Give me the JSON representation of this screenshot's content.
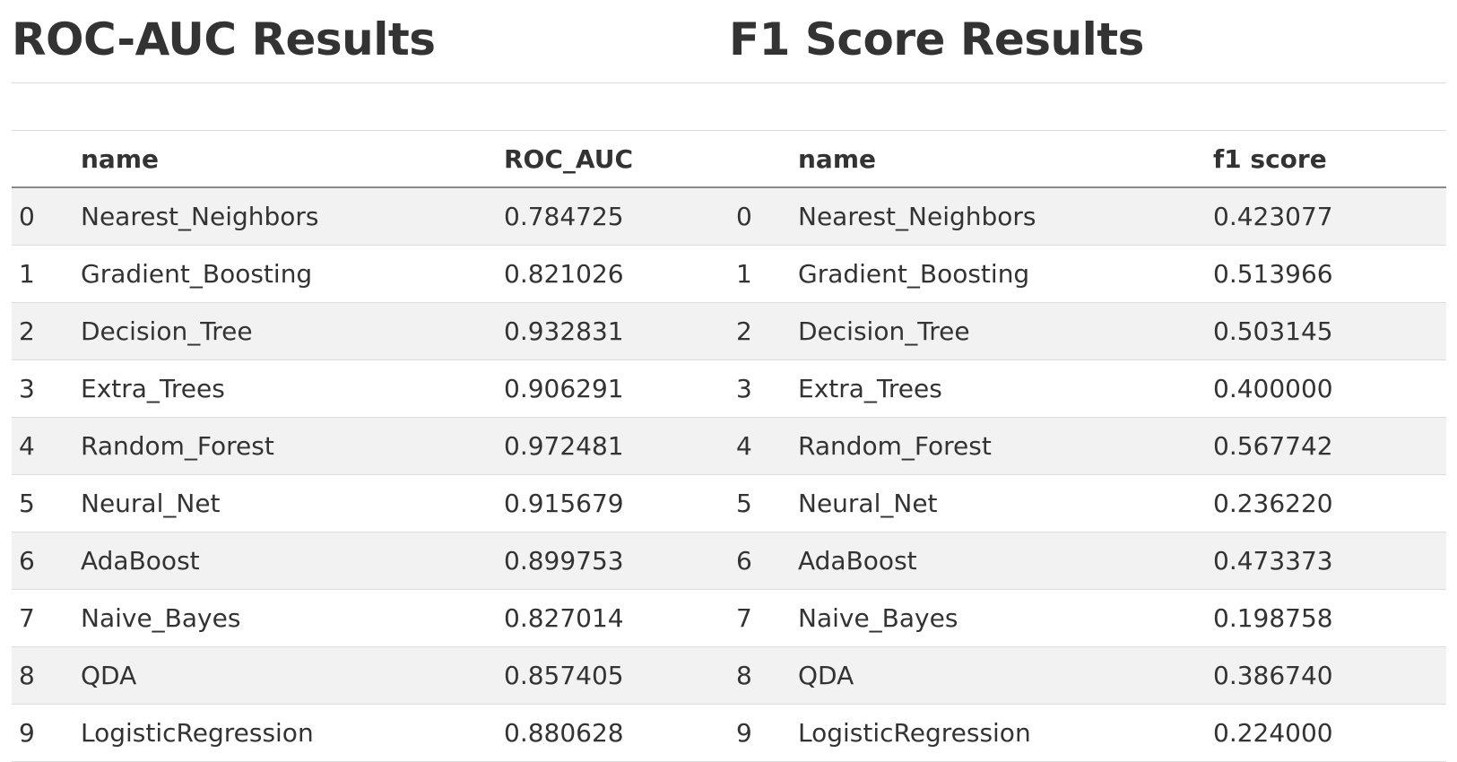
{
  "roc": {
    "title": "ROC-AUC Results",
    "columns": [
      "",
      "name",
      "ROC_AUC"
    ],
    "rows": [
      {
        "idx": "0",
        "name": "Nearest_Neighbors",
        "value": "0.784725"
      },
      {
        "idx": "1",
        "name": "Gradient_Boosting",
        "value": "0.821026"
      },
      {
        "idx": "2",
        "name": "Decision_Tree",
        "value": "0.932831"
      },
      {
        "idx": "3",
        "name": "Extra_Trees",
        "value": "0.906291"
      },
      {
        "idx": "4",
        "name": "Random_Forest",
        "value": "0.972481"
      },
      {
        "idx": "5",
        "name": "Neural_Net",
        "value": "0.915679"
      },
      {
        "idx": "6",
        "name": "AdaBoost",
        "value": "0.899753"
      },
      {
        "idx": "7",
        "name": "Naive_Bayes",
        "value": "0.827014"
      },
      {
        "idx": "8",
        "name": "QDA",
        "value": "0.857405"
      },
      {
        "idx": "9",
        "name": "LogisticRegression",
        "value": "0.880628"
      }
    ]
  },
  "f1": {
    "title": "F1 Score Results",
    "columns": [
      "",
      "name",
      "f1 score"
    ],
    "rows": [
      {
        "idx": "0",
        "name": "Nearest_Neighbors",
        "value": "0.423077"
      },
      {
        "idx": "1",
        "name": "Gradient_Boosting",
        "value": "0.513966"
      },
      {
        "idx": "2",
        "name": "Decision_Tree",
        "value": "0.503145"
      },
      {
        "idx": "3",
        "name": "Extra_Trees",
        "value": "0.400000"
      },
      {
        "idx": "4",
        "name": "Random_Forest",
        "value": "0.567742"
      },
      {
        "idx": "5",
        "name": "Neural_Net",
        "value": "0.236220"
      },
      {
        "idx": "6",
        "name": "AdaBoost",
        "value": "0.473373"
      },
      {
        "idx": "7",
        "name": "Naive_Bayes",
        "value": "0.198758"
      },
      {
        "idx": "8",
        "name": "QDA",
        "value": "0.386740"
      },
      {
        "idx": "9",
        "name": "LogisticRegression",
        "value": "0.224000"
      }
    ]
  }
}
